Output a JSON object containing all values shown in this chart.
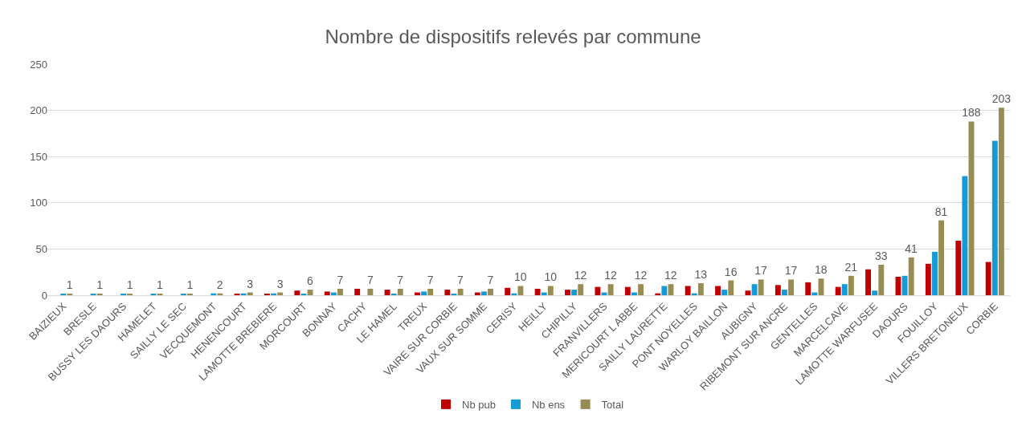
{
  "chart_data": {
    "type": "bar",
    "title": "Nombre de dispositifs relevés par commune",
    "categories": [
      "BAIZIEUX",
      "BRESLE",
      "BUSSY LES DAOURS",
      "HAMELET",
      "SAILLY LE SEC",
      "VECQUEMONT",
      "HENENCOURT",
      "LAMOTTE BREBIERE",
      "MORCOURT",
      "BONNAY",
      "CACHY",
      "LE HAMEL",
      "TREUX",
      "VAIRE SUR CORBIE",
      "VAUX SUR SOMME",
      "CERISY",
      "HEILLY",
      "CHIPILLY",
      "FRANVILLERS",
      "MERICOURT L ABBE",
      "SAILLY LAURETTE",
      "PONT NOYELLES",
      "WARLOY BAILLON",
      "AUBIGNY",
      "RIBEMONT SUR ANCRE",
      "GENTELLES",
      "MARCELCAVE",
      "LAMOTTE WARFUSEE",
      "DAOURS",
      "FOUILLOY",
      "VILLERS BRETONEUX",
      "CORBIE"
    ],
    "series": [
      {
        "name": "Nb pub",
        "color": "#c00000",
        "values": [
          0,
          0,
          0,
          0,
          0,
          0,
          1,
          1,
          5,
          4,
          7,
          6,
          3,
          6,
          3,
          8,
          7,
          6,
          9,
          9,
          2,
          10,
          10,
          5,
          11,
          14,
          9,
          28,
          20,
          34,
          59,
          36
        ]
      },
      {
        "name": "Nb ens",
        "color": "#149ad6",
        "values": [
          1,
          1,
          1,
          1,
          1,
          2,
          2,
          2,
          1,
          3,
          0,
          1,
          4,
          1,
          4,
          2,
          3,
          6,
          3,
          3,
          10,
          2,
          6,
          12,
          6,
          3,
          12,
          5,
          21,
          47,
          129,
          167
        ]
      },
      {
        "name": "Total",
        "color": "#978c52",
        "values": [
          1,
          1,
          1,
          1,
          1,
          2,
          3,
          3,
          6,
          7,
          7,
          7,
          7,
          7,
          7,
          10,
          10,
          12,
          12,
          12,
          12,
          13,
          16,
          17,
          17,
          18,
          21,
          33,
          41,
          81,
          188,
          203
        ],
        "value_labels": [
          "1",
          "1",
          "1",
          "1",
          "1",
          "2",
          "3",
          "3",
          "6",
          "7",
          "7",
          "7",
          "7",
          "7",
          "7",
          "10",
          "10",
          "12",
          "12",
          "12",
          "12",
          "13",
          "16",
          "17",
          "17",
          "18",
          "21",
          "33",
          "41",
          "81",
          "188",
          "203"
        ]
      }
    ],
    "ylim": [
      0,
      250
    ],
    "yticks": [
      0,
      50,
      100,
      150,
      200,
      250
    ],
    "grid": "y",
    "legend": "bottom"
  }
}
